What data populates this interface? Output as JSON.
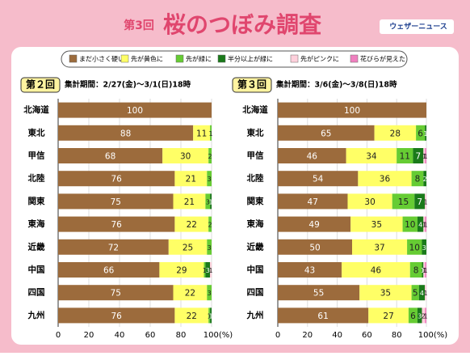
{
  "header": {
    "round": "第3回",
    "title": "桜のつぼみ調査",
    "logo": "ウェザーニュース"
  },
  "chart_data": [
    {
      "type": "bar",
      "orientation": "horizontal",
      "stacked": true,
      "title": "第２回",
      "subtitle": "集計期間：2/27(金)～3/1(日)18時",
      "categories": [
        "北海道",
        "東北",
        "甲信",
        "北陸",
        "関東",
        "東海",
        "近畿",
        "中国",
        "四国",
        "九州"
      ],
      "series": [
        {
          "name": "まだ小さく硬い",
          "color": "#9c6b3c",
          "values": [
            100,
            88,
            68,
            76,
            75,
            76,
            72,
            66,
            75,
            76
          ]
        },
        {
          "name": "先が黄色に",
          "color": "#ffff66",
          "values": [
            null,
            11,
            30,
            21,
            21,
            22,
            25,
            29,
            22,
            22
          ]
        },
        {
          "name": "先が緑に",
          "color": "#66cc33",
          "values": [
            null,
            1,
            2,
            3,
            3,
            2,
            3,
            1,
            3,
            1
          ]
        },
        {
          "name": "半分以上が緑に",
          "color": "#1a7a1a",
          "values": [
            null,
            null,
            null,
            null,
            1,
            null,
            null,
            3,
            null,
            1
          ]
        },
        {
          "name": "先がピンクに",
          "color": "#ffd0dc",
          "values": [
            null,
            null,
            null,
            null,
            null,
            null,
            null,
            1,
            null,
            null
          ]
        },
        {
          "name": "花びらが見えた",
          "color": "#f080c0",
          "values": [
            null,
            null,
            null,
            null,
            null,
            null,
            null,
            null,
            null,
            null
          ]
        }
      ],
      "xlim": [
        0,
        100
      ],
      "xticks": [
        0,
        20,
        40,
        60,
        80,
        {
          "value": 100,
          "label": "100(%)"
        }
      ]
    },
    {
      "type": "bar",
      "orientation": "horizontal",
      "stacked": true,
      "title": "第３回",
      "subtitle": "集計期間：3/6(金)～3/8(日)18時",
      "categories": [
        "北海道",
        "東北",
        "甲信",
        "北陸",
        "関東",
        "東海",
        "近畿",
        "中国",
        "四国",
        "九州"
      ],
      "series": [
        {
          "name": "まだ小さく硬い",
          "color": "#9c6b3c",
          "values": [
            100,
            65,
            46,
            54,
            47,
            49,
            50,
            43,
            55,
            61
          ]
        },
        {
          "name": "先が黄色に",
          "color": "#ffff66",
          "values": [
            null,
            28,
            34,
            36,
            30,
            35,
            37,
            46,
            35,
            27
          ]
        },
        {
          "name": "先が緑に",
          "color": "#66cc33",
          "values": [
            null,
            6,
            11,
            8,
            15,
            10,
            10,
            8,
            5,
            6
          ]
        },
        {
          "name": "半分以上が緑に",
          "color": "#1a7a1a",
          "values": [
            null,
            1,
            7,
            2,
            7,
            4,
            3,
            1,
            4,
            3
          ]
        },
        {
          "name": "先がピンクに",
          "color": "#ffd0dc",
          "values": [
            null,
            null,
            1,
            null,
            1,
            1,
            null,
            1,
            1,
            2
          ]
        },
        {
          "name": "花びらが見えた",
          "color": "#f080c0",
          "values": [
            null,
            null,
            1,
            null,
            null,
            1,
            null,
            1,
            null,
            1
          ]
        }
      ],
      "xlim": [
        0,
        100
      ],
      "xticks": [
        0,
        20,
        40,
        60,
        80,
        {
          "value": 100,
          "label": "100(%)"
        }
      ]
    }
  ]
}
